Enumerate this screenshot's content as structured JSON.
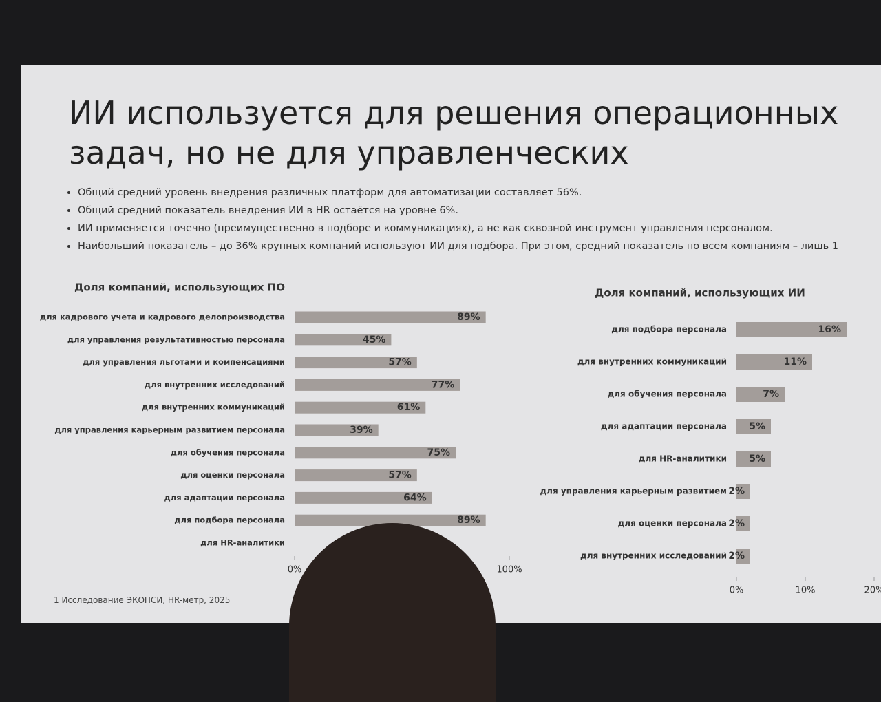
{
  "slide": {
    "title": "ИИ используется для решения операционных задач, но не для управленческих",
    "bullets": [
      "Общий средний уровень внедрения различных платформ для автоматизации составляет 56%.",
      "Общий средний показатель внедрения ИИ в HR остаётся на уровне 6%.",
      "ИИ применяется точечно (преимущественно в подборе и коммуникациях), а не как сквозной инструмент управления персоналом.",
      "Наибольший показатель – до 36% крупных компаний используют ИИ для подбора. При этом, средний показатель по всем компаниям – лишь 1"
    ],
    "footnote": "1 Исследование ЭКОПСИ, HR-метр, 2025"
  },
  "chart_data": [
    {
      "type": "hbar",
      "title": "Доля компаний, использующих ПО",
      "categories": [
        "для кадрового учета и кадрового делопроизводства",
        "для управления результативностью персонала",
        "для управления льготами и компенсациями",
        "для внутренних исследований",
        "для внутренних коммуникаций",
        "для управления карьерным развитием персонала",
        "для обучения персонала",
        "для оценки персонала",
        "для адаптации персонала",
        "для подбора персонала",
        "для HR-аналитики"
      ],
      "values": [
        89,
        45,
        57,
        77,
        61,
        39,
        75,
        57,
        64,
        89,
        null
      ],
      "value_labels": [
        "89%",
        "45%",
        "57%",
        "77%",
        "61%",
        "39%",
        "75%",
        "57%",
        "64%",
        "89%",
        null
      ],
      "color": "#a39d9a",
      "xlim": [
        0,
        100
      ],
      "xticks": [
        {
          "value": 0,
          "label": "0%"
        },
        {
          "value": 100,
          "label": "100%"
        }
      ]
    },
    {
      "type": "hbar",
      "title": "Доля компаний, использующих ИИ",
      "categories": [
        "для подбора персонала",
        "для внутренних коммуникаций",
        "для обучения персонала",
        "для адаптации персонала",
        "для HR-аналитики",
        "для управления карьерным развитием",
        "для оценки персонала",
        "для внутренних исследований"
      ],
      "values": [
        16,
        11,
        7,
        5,
        5,
        2,
        2,
        2
      ],
      "value_labels": [
        "16%",
        "11%",
        "7%",
        "5%",
        "5%",
        "2%",
        "2%",
        "2%"
      ],
      "color": "#a39d9a",
      "xlim": [
        0,
        20
      ],
      "xticks": [
        {
          "value": 0,
          "label": "0%"
        },
        {
          "value": 10,
          "label": "10%"
        },
        {
          "value": 20,
          "label": "20%"
        }
      ]
    }
  ]
}
